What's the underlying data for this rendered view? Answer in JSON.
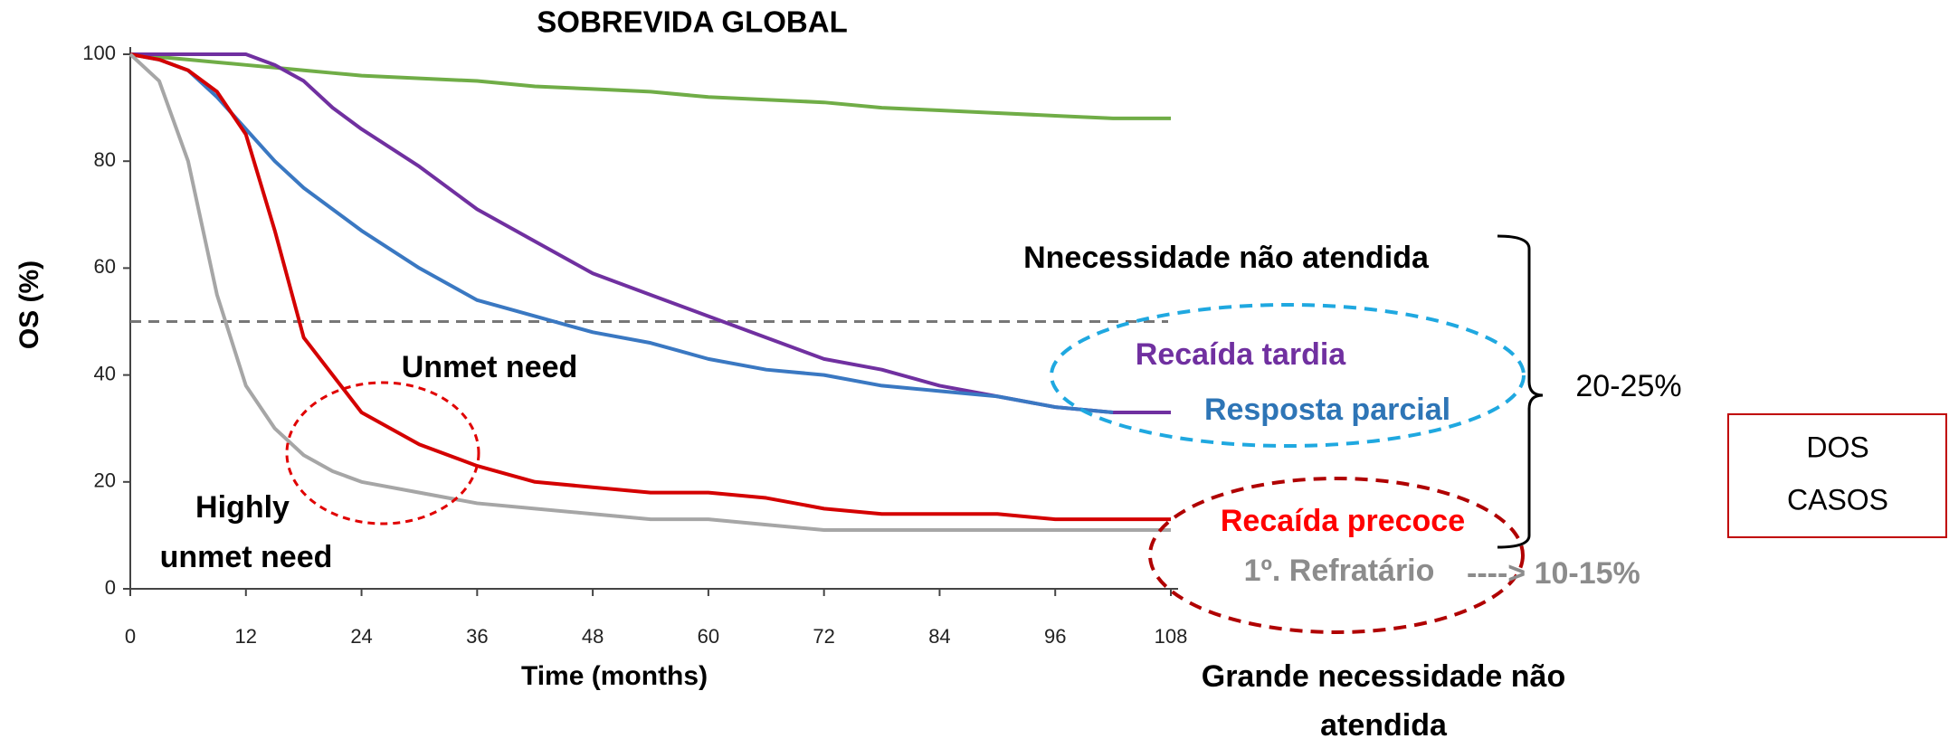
{
  "chart_data": {
    "type": "line",
    "title": "SOBREVIDA GLOBAL",
    "x_label": "Time (months)",
    "y_label": "OS (%)",
    "x": [
      0,
      3,
      6,
      9,
      12,
      15,
      18,
      21,
      24,
      30,
      36,
      42,
      48,
      54,
      60,
      66,
      72,
      78,
      84,
      90,
      96,
      102,
      108
    ],
    "series": [
      {
        "color": "#70ad47",
        "values": [
          100,
          99.5,
          99,
          98.5,
          98,
          97.5,
          97,
          96.5,
          96,
          95.5,
          95,
          94,
          93.5,
          93,
          92,
          91.5,
          91,
          90,
          89.5,
          89,
          88.5,
          88,
          88
        ]
      },
      {
        "name": "Recaída tardia",
        "color": "#7030a0",
        "values": [
          100,
          100,
          100,
          100,
          100,
          98,
          95,
          90,
          86,
          79,
          71,
          65,
          59,
          55,
          51,
          47,
          43,
          41,
          38,
          36,
          34,
          33,
          33
        ]
      },
      {
        "name": "Resposta parcial",
        "color": "#3a78c2",
        "values": [
          100,
          99,
          97,
          92,
          86,
          80,
          75,
          71,
          67,
          60,
          54,
          51,
          48,
          46,
          43,
          41,
          40,
          38,
          37,
          36,
          34,
          33,
          null
        ]
      },
      {
        "name": "Recaída precoce",
        "color": "#d40000",
        "values": [
          100,
          99,
          97,
          93,
          85,
          67,
          47,
          40,
          33,
          27,
          23,
          20,
          19,
          18,
          18,
          17,
          15,
          14,
          14,
          14,
          13,
          13,
          13
        ]
      },
      {
        "name": "1º. Refratário",
        "color": "#a6a6a6",
        "values": [
          100,
          95,
          80,
          55,
          38,
          30,
          25,
          22,
          20,
          18,
          16,
          15,
          14,
          13,
          13,
          12,
          11,
          11,
          11,
          11,
          11,
          11,
          11
        ]
      }
    ],
    "xlim": [
      0,
      108
    ],
    "ylim": [
      0,
      100
    ],
    "xticks": [
      0,
      12,
      24,
      36,
      48,
      60,
      72,
      84,
      96,
      108
    ],
    "yticks": [
      0,
      20,
      40,
      60,
      80,
      100
    ],
    "reference_line": 50,
    "annotations": {
      "unmet_need_header": "Nnecessidade não atendida",
      "range_high": "20-25%",
      "cases_box": [
        "DOS",
        "CASOS"
      ],
      "range_low": "----> 10-15%",
      "large_need": [
        "Grande necessidade não",
        "atendida"
      ],
      "unmet_need": "Unmet need",
      "highly_unmet_need": [
        "Highly",
        "unmet need"
      ]
    }
  }
}
